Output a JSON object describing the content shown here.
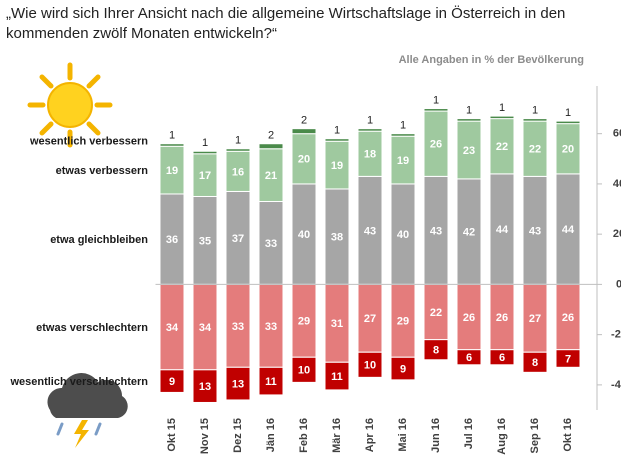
{
  "chart_data": {
    "type": "diverging_stacked_bar",
    "title": "„Wie wird sich Ihrer Ansicht nach die allgemeine Wirtschaftslage in Österreich in den kommenden  zwölf Monaten entwickeln?“",
    "subtitle": "Alle Angaben  in % der Bevölkerung",
    "categories": [
      "Okt 15",
      "Nov 15",
      "Dez 15",
      "Jän 16",
      "Feb 16",
      "Mär 16",
      "Apr 16",
      "Mai 16",
      "Jun 16",
      "Jul 16",
      "Aug 16",
      "Sep 16",
      "Okt 16"
    ],
    "series": [
      {
        "name": "etwa gleichbleiben",
        "color": "#a6a6a6",
        "values": [
          36,
          35,
          37,
          33,
          40,
          38,
          43,
          40,
          43,
          42,
          44,
          43,
          44
        ]
      },
      {
        "name": "etwas verbessern",
        "color": "#9fc99f",
        "values": [
          19,
          17,
          16,
          21,
          20,
          19,
          18,
          19,
          26,
          23,
          22,
          22,
          20
        ]
      },
      {
        "name": "wesentlich verbessern",
        "color": "#4a8a4a",
        "values": [
          1,
          1,
          1,
          2,
          2,
          1,
          1,
          1,
          1,
          1,
          1,
          1,
          1
        ]
      },
      {
        "name": "etwas verschlechtern",
        "color": "#e47c7c",
        "values": [
          -34,
          -34,
          -33,
          -33,
          -29,
          -31,
          -27,
          -29,
          -22,
          -26,
          -26,
          -27,
          -26
        ],
        "value_labels": [
          "34",
          "34",
          "33",
          "33",
          "29",
          "31",
          "27",
          "29",
          "22",
          "26",
          "26",
          "27",
          "26"
        ]
      },
      {
        "name": "wesentlich verschlechtern",
        "color": "#c00000",
        "values": [
          -9,
          -13,
          -13,
          -11,
          -10,
          -11,
          -10,
          -9,
          -8,
          -6,
          -6,
          -8,
          -7
        ],
        "value_labels": [
          "9",
          "13",
          "13",
          "11",
          "10",
          "11",
          "10",
          "9",
          "8",
          "6",
          "6",
          "8",
          "7"
        ]
      }
    ],
    "ylim": [
      -50,
      75
    ],
    "yticks": [
      60,
      40,
      20,
      0,
      -20,
      -40
    ],
    "grid": false
  }
}
